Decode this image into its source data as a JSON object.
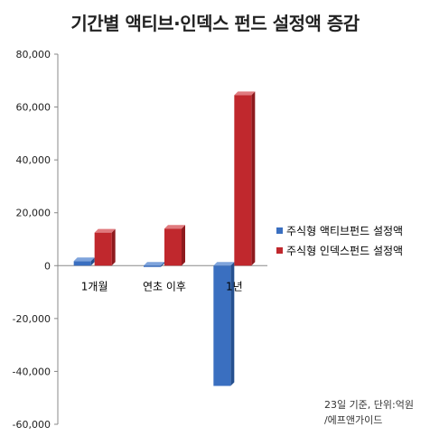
{
  "title": "기간별 액티브·인덱스 펀드 설정액 증감",
  "colors": {
    "active": "#3a6fc0",
    "index": "#c0282d",
    "axis": "#888888"
  },
  "source_lines": [
    "23일 기준, 단위:억원",
    "/에프앤가이드"
  ],
  "chart_data": {
    "type": "bar",
    "categories": [
      "1개월",
      "연초 이후",
      "1년"
    ],
    "series": [
      {
        "name": "주식형 액티브펀드 설정액",
        "values": [
          1700,
          -500,
          -45500
        ]
      },
      {
        "name": "주식형 인덱스펀드 설정액",
        "values": [
          12500,
          14000,
          64500
        ]
      }
    ],
    "ylim": [
      -60000,
      80000
    ],
    "yticks": [
      "80,000",
      "60,000",
      "40,000",
      "20,000",
      "0",
      "-20,000",
      "-40,000",
      "-60,000"
    ],
    "ytick_values": [
      80000,
      60000,
      40000,
      20000,
      0,
      -20000,
      -40000,
      -60000
    ],
    "grid": false,
    "legend": "right"
  }
}
